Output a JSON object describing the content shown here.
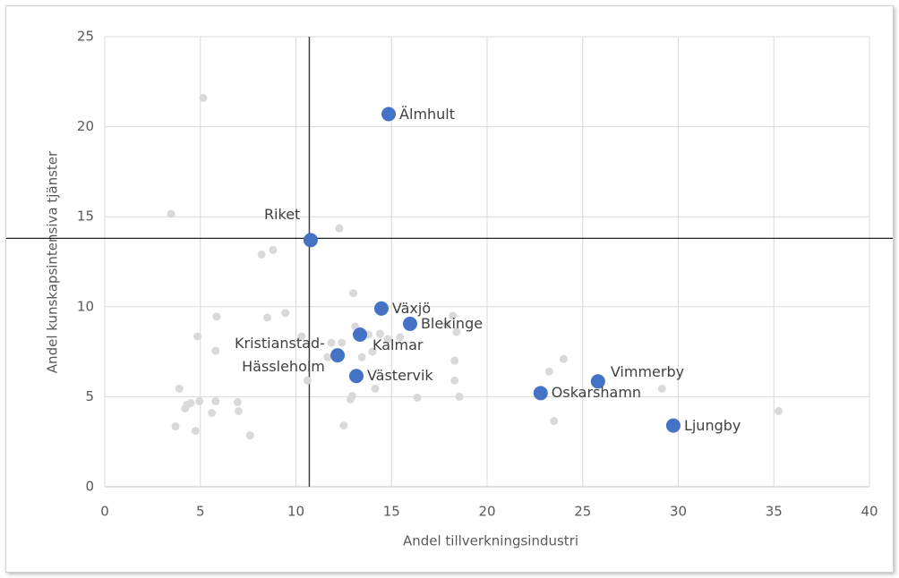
{
  "chart_data": {
    "type": "scatter",
    "x_label": "Andel tillverkningsindustri",
    "y_label": "Andel kunskapsintensiva tjänster",
    "xlim": [
      0,
      40
    ],
    "ylim": [
      0,
      25
    ],
    "xticks": [
      0,
      5,
      10,
      15,
      20,
      25,
      30,
      35,
      40
    ],
    "yticks": [
      0,
      5,
      10,
      15,
      20,
      25
    ],
    "grid": true,
    "reference_lines": {
      "x": 10.7,
      "y": 13.8
    },
    "series": [
      {
        "color": "#d9d9d9",
        "x": [
          5.15,
          3.47,
          12.27,
          8.8,
          8.2,
          13.0,
          5.85,
          8.5,
          9.45,
          4.85,
          10.3,
          5.8,
          11.85,
          12.4,
          13.1,
          13.8,
          14.4,
          13.45,
          14.0,
          14.8,
          15.45,
          18.2,
          18.4,
          17.9,
          18.3,
          18.3,
          18.55,
          16.35,
          14.15,
          12.85,
          12.95,
          12.5,
          10.6,
          3.9,
          4.3,
          4.5,
          4.2,
          4.95,
          5.8,
          5.6,
          6.95,
          7.0,
          3.7,
          4.75,
          7.6,
          23.25,
          24.0,
          23.5,
          29.15,
          35.25,
          11.65
        ],
        "values": [
          21.6,
          15.15,
          14.35,
          13.15,
          12.9,
          10.75,
          9.45,
          9.4,
          9.65,
          8.35,
          8.35,
          7.55,
          8.0,
          8.0,
          8.9,
          8.45,
          8.5,
          7.2,
          7.5,
          8.2,
          8.3,
          9.5,
          8.6,
          9.0,
          7.0,
          5.9,
          5.0,
          4.95,
          5.45,
          4.85,
          5.05,
          3.4,
          5.9,
          5.45,
          4.55,
          4.65,
          4.35,
          4.75,
          4.75,
          4.1,
          4.7,
          4.2,
          3.35,
          3.1,
          2.85,
          6.4,
          7.1,
          3.65,
          5.45,
          4.2,
          7.2
        ]
      },
      {
        "color": "#4472c4",
        "x": [
          14.85,
          10.77,
          14.47,
          15.97,
          13.35,
          12.18,
          13.16,
          25.8,
          22.8,
          29.74
        ],
        "values": [
          20.7,
          13.7,
          9.9,
          9.05,
          8.45,
          7.3,
          6.15,
          5.85,
          5.2,
          3.4
        ],
        "labels": [
          "Älmhult",
          "Riket",
          "Växjö",
          "Blekinge",
          "Kalmar",
          "Kristianstad-\nHässleholm",
          "Västervik",
          "Vimmerby",
          "Oskarshamn",
          "Ljungby"
        ]
      }
    ]
  }
}
